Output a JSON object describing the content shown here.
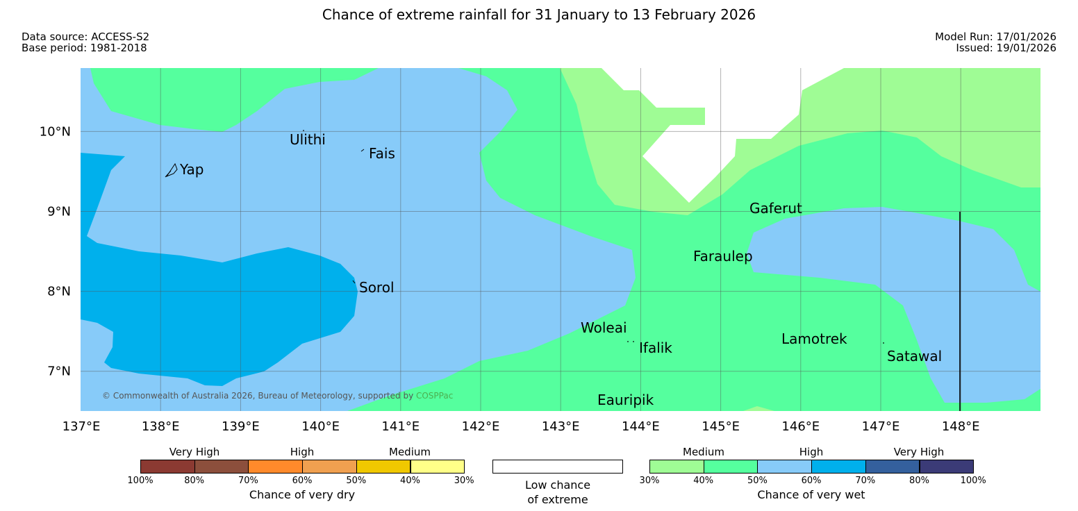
{
  "header": {
    "title": "Chance of extreme rainfall for 31 January to 13 February 2026",
    "data_source": "Data source: ACCESS-S2",
    "base_period": "Base period: 1981-2018",
    "model_run": "Model Run: 17/01/2026",
    "issued": "Issued: 19/01/2026"
  },
  "map": {
    "lon_range": [
      137,
      149
    ],
    "lat_range": [
      6.5,
      10.8
    ],
    "lon_ticks": [
      137,
      138,
      139,
      140,
      141,
      142,
      143,
      144,
      145,
      146,
      147,
      148
    ],
    "lon_tick_labels": [
      "137°E",
      "138°E",
      "139°E",
      "140°E",
      "141°E",
      "142°E",
      "143°E",
      "144°E",
      "145°E",
      "146°E",
      "147°E",
      "148°E"
    ],
    "lat_ticks": [
      7,
      8,
      9,
      10
    ],
    "lat_tick_labels": [
      "7°N",
      "8°N",
      "9°N",
      "10°N"
    ],
    "grid": true,
    "copyright_prefix": "© Commonwealth of Australia 2026, Bureau of Meteorology, supported by ",
    "copyright_link": "COSPPac",
    "copyright_link_color": "#4caf50",
    "places": [
      {
        "name": "Ulithi",
        "lon": 139.8,
        "lat": 10.0
      },
      {
        "name": "Fais",
        "lon": 140.5,
        "lat": 9.76
      },
      {
        "name": "Yap",
        "lon": 138.1,
        "lat": 9.52
      },
      {
        "name": "Gaferut",
        "lon": 145.35,
        "lat": 9.0
      },
      {
        "name": "Faraulep",
        "lon": 144.6,
        "lat": 8.45
      },
      {
        "name": "Sorol",
        "lon": 140.4,
        "lat": 8.1
      },
      {
        "name": "Woleai",
        "lon": 143.3,
        "lat": 7.55
      },
      {
        "name": "Ifalik",
        "lon": 143.95,
        "lat": 7.3
      },
      {
        "name": "Lamotrek",
        "lon": 145.8,
        "lat": 7.4
      },
      {
        "name": "Satawal",
        "lon": 147.05,
        "lat": 7.2
      },
      {
        "name": "Eauripik",
        "lon": 143.5,
        "lat": 6.65
      }
    ]
  },
  "legend": {
    "dry": {
      "groups": [
        "Very High",
        "High",
        "Medium"
      ],
      "colors": [
        "#8b3a32",
        "#8c4f3c",
        "#ff8a2b",
        "#f0a050",
        "#f0c800",
        "#ffff88"
      ],
      "tick_labels": [
        "100%",
        "80%",
        "70%",
        "60%",
        "50%",
        "40%",
        "30%"
      ],
      "caption": "Chance of very dry"
    },
    "low": {
      "color": "#ffffff",
      "caption_line1": "Low chance",
      "caption_line2": "of extreme"
    },
    "wet": {
      "groups": [
        "Medium",
        "High",
        "Very High"
      ],
      "colors": [
        "#9ffc95",
        "#55ff9e",
        "#87cbf9",
        "#00b0ec",
        "#34609d",
        "#3b3b77"
      ],
      "tick_labels": [
        "30%",
        "40%",
        "50%",
        "60%",
        "70%",
        "80%",
        "100%"
      ],
      "caption": "Chance of very wet"
    }
  }
}
